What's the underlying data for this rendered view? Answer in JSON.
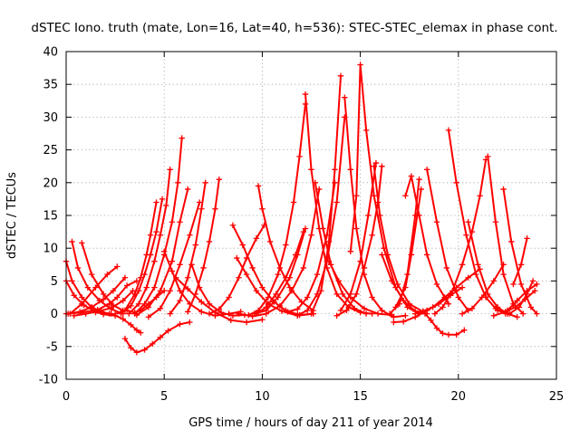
{
  "chart_data": {
    "type": "scatter",
    "title": "dSTEC Iono. truth (mate, Lon=16, Lat=40, h=536): STEC-STEC_elemax in phase cont.",
    "xlabel": "GPS time / hours of day 211 of year 2014",
    "ylabel": "dSTEC  / TECUs",
    "xlim": [
      0,
      25
    ],
    "ylim": [
      -10,
      40
    ],
    "x_ticks": [
      "0",
      "5",
      "10",
      "15",
      "20",
      "25"
    ],
    "y_ticks": [
      "-10",
      "-5",
      "0",
      "5",
      "10",
      "15",
      "20",
      "25",
      "30",
      "35",
      "40"
    ],
    "grid": true,
    "legend": "none",
    "marker": "plus",
    "series_color": "#ff0000",
    "series": [
      {
        "x": [
          0,
          0.3,
          0.8,
          1.3,
          1.8,
          2.2
        ],
        "y": [
          8,
          5,
          2.5,
          1,
          0.3,
          0
        ]
      },
      {
        "x": [
          0,
          0.4,
          0.9,
          1.4,
          1.9,
          2.5
        ],
        "y": [
          5,
          2.8,
          1.3,
          0.5,
          -0.1,
          -0.3
        ]
      },
      {
        "x": [
          0.3,
          0.6,
          1.1,
          1.7,
          2.3,
          2.9
        ],
        "y": [
          11,
          7,
          4,
          2,
          0.7,
          0
        ]
      },
      {
        "x": [
          0.8,
          1.3,
          1.9,
          2.4,
          2.9
        ],
        "y": [
          10.8,
          6,
          3,
          1.3,
          0.5
        ]
      },
      {
        "x": [
          0,
          0.8,
          1.6,
          2.2,
          2.6,
          3.1,
          3.6
        ],
        "y": [
          0,
          0.2,
          0.6,
          1.5,
          2.5,
          4.3,
          5
        ]
      },
      {
        "x": [
          0.4,
          1,
          1.7,
          2.3,
          2.9,
          3.4
        ],
        "y": [
          -0.3,
          0,
          0.4,
          0.9,
          2,
          3.5
        ]
      },
      {
        "x": [
          0.2,
          0.8,
          1.5,
          2.1,
          2.6
        ],
        "y": [
          0,
          1.5,
          4,
          6,
          7.2
        ]
      },
      {
        "x": [
          0.1,
          0.7,
          1.3,
          1.9,
          2.4,
          3
        ],
        "y": [
          0,
          0.3,
          1,
          2.2,
          3.5,
          5.5
        ]
      },
      {
        "x": [
          1.5,
          2.3,
          2.9,
          3.3,
          3.6,
          3.8
        ],
        "y": [
          0.2,
          0,
          -0.8,
          -1.7,
          -2.5,
          -2.9
        ]
      },
      {
        "x": [
          3.1,
          3.5,
          3.8,
          4.2,
          4.6,
          5
        ],
        "y": [
          0.5,
          0.2,
          0.5,
          1.5,
          2.5,
          3.5
        ]
      },
      {
        "x": [
          3,
          3.3,
          3.6,
          4,
          4.4,
          4.8,
          5.2,
          5.8,
          6.3
        ],
        "y": [
          -3.8,
          -5.2,
          -5.9,
          -5.5,
          -4.6,
          -3.6,
          -2.6,
          -1.6,
          -1.3
        ]
      },
      {
        "x": [
          2.5,
          3,
          3.5,
          3.8,
          4.1,
          4.3,
          4.6
        ],
        "y": [
          0,
          0.5,
          3,
          5.5,
          9,
          12,
          17
        ]
      },
      {
        "x": [
          2.8,
          3.3,
          3.7,
          4,
          4.3,
          4.6,
          4.9
        ],
        "y": [
          0,
          1.2,
          3.5,
          6,
          9,
          12.5,
          17.5
        ]
      },
      {
        "x": [
          3.2,
          3.7,
          4.1,
          4.5,
          4.8,
          5.1,
          5.3
        ],
        "y": [
          0,
          1.5,
          4,
          8,
          12,
          16.5,
          22
        ]
      },
      {
        "x": [
          3.5,
          4,
          4.5,
          5,
          5.4,
          5.7,
          5.9
        ],
        "y": [
          0,
          1.5,
          4,
          9,
          14,
          20,
          26.8
        ]
      },
      {
        "x": [
          3.6,
          4.2,
          4.8,
          5.4,
          5.8,
          6.2
        ],
        "y": [
          -0.2,
          1,
          3.5,
          8,
          14,
          19
        ]
      },
      {
        "x": [
          4.2,
          4.8,
          5.3,
          5.8,
          6.3,
          6.8
        ],
        "y": [
          -0.5,
          0.8,
          3.5,
          7.5,
          12,
          17
        ]
      },
      {
        "x": [
          5,
          5.4,
          5.8,
          6.3,
          6.9,
          7.6,
          8.3,
          8.9
        ],
        "y": [
          9.5,
          6.5,
          3.5,
          1.5,
          0.3,
          -0.3,
          0,
          0.3
        ]
      },
      {
        "x": [
          5.3,
          5.8,
          6.2,
          6.6,
          6.9,
          7.1
        ],
        "y": [
          0,
          2,
          5.5,
          10.5,
          16,
          20
        ]
      },
      {
        "x": [
          6.2,
          6.6,
          7,
          7.3,
          7.6,
          7.8
        ],
        "y": [
          0.3,
          3,
          7,
          11,
          16,
          20.5
        ]
      },
      {
        "x": [
          5.6,
          6.2,
          6.9,
          7.6,
          8.4,
          9.2,
          10
        ],
        "y": [
          5.5,
          3.8,
          1.8,
          0.2,
          -1,
          -1.3,
          -0.9
        ]
      },
      {
        "x": [
          6.4,
          6.8,
          7.3,
          7.9,
          8.5,
          9.1
        ],
        "y": [
          7.5,
          4,
          1.5,
          0.2,
          -0.3,
          -0.2
        ]
      },
      {
        "x": [
          7.3,
          7.8,
          8.3,
          8.8,
          9.2,
          9.7,
          10.1
        ],
        "y": [
          0,
          0.7,
          2.5,
          5.5,
          8.5,
          11.5,
          13.5
        ]
      },
      {
        "x": [
          8.5,
          9,
          9.5,
          10,
          10.6,
          11.2,
          11.9,
          12.6
        ],
        "y": [
          13.5,
          10.5,
          7,
          4,
          1.8,
          0.5,
          -0.2,
          0
        ]
      },
      {
        "x": [
          8.7,
          9.2,
          9.7,
          10.3,
          11,
          11.8,
          12.6
        ],
        "y": [
          8.5,
          6,
          3.5,
          1.5,
          0.4,
          -0.3,
          0
        ]
      },
      {
        "x": [
          8.8,
          9.5,
          10.2,
          10.9,
          11.5,
          12.1,
          12.5,
          12.9
        ],
        "y": [
          0,
          -0.4,
          0,
          1.2,
          3.5,
          7,
          12,
          19
        ]
      },
      {
        "x": [
          9.7,
          10.2,
          10.7,
          11.2,
          11.7,
          12.1
        ],
        "y": [
          0,
          1,
          3,
          5.5,
          9,
          12.5
        ]
      },
      {
        "x": [
          9.3,
          9.8,
          10.3,
          10.8,
          11.2,
          11.6,
          11.9,
          12.2
        ],
        "y": [
          -0.2,
          0.5,
          2.5,
          6,
          10.5,
          17,
          24,
          32
        ]
      },
      {
        "x": [
          9.6,
          10.2,
          10.8,
          11.4,
          11.8,
          12.2
        ],
        "y": [
          0,
          0.5,
          2.5,
          5.5,
          9,
          13
        ]
      },
      {
        "x": [
          9.8,
          10,
          10.4,
          10.9,
          11.4,
          12,
          12.6
        ],
        "y": [
          19.5,
          16,
          11,
          7,
          4,
          1.8,
          0.5
        ]
      },
      {
        "x": [
          11.3,
          11.8,
          12.3,
          12.8,
          13.3,
          13.7
        ],
        "y": [
          0.3,
          0.7,
          2.5,
          6,
          12,
          20
        ]
      },
      {
        "x": [
          11.8,
          12.3,
          12.8,
          13.3,
          13.8,
          14.2
        ],
        "y": [
          -0.2,
          0.5,
          3,
          8,
          17,
          30
        ]
      },
      {
        "x": [
          12.5,
          13,
          13.4,
          13.7,
          14
        ],
        "y": [
          0,
          3.5,
          11,
          22,
          36.3
        ]
      },
      {
        "x": [
          12.2,
          12.5,
          12.9,
          13.3,
          13.8,
          14.4,
          15,
          15.6
        ],
        "y": [
          33.5,
          22,
          13,
          7,
          3,
          1,
          0.2,
          0
        ]
      },
      {
        "x": [
          12.7,
          13.1,
          13.5,
          14.1,
          14.7,
          15.3
        ],
        "y": [
          20,
          13,
          7.5,
          3,
          0.8,
          0
        ]
      },
      {
        "x": [
          14.2,
          14.5,
          14.8,
          15.2,
          15.6,
          16.1,
          16.7,
          17.3
        ],
        "y": [
          33,
          22,
          13,
          6,
          2.5,
          0.5,
          -0.5,
          -0.3
        ]
      },
      {
        "x": [
          13.4,
          13.9,
          14.5,
          15.2,
          15.9,
          16.6
        ],
        "y": [
          8,
          5,
          2.5,
          0.8,
          0,
          -0.2
        ]
      },
      {
        "x": [
          13.8,
          14.3,
          14.8,
          15.2,
          15.6,
          15.9,
          16.1
        ],
        "y": [
          -0.3,
          0.5,
          3,
          7,
          12,
          17,
          22.5
        ]
      },
      {
        "x": [
          14,
          14.5,
          15,
          15.4,
          15.8
        ],
        "y": [
          0.5,
          3,
          8,
          15,
          23
        ]
      },
      {
        "x": [
          14.5,
          14.8,
          15,
          15.3,
          15.7,
          16.2,
          16.8,
          17.4,
          18
        ],
        "y": [
          9.5,
          18,
          38,
          28,
          18,
          10,
          4,
          1,
          0
        ]
      },
      {
        "x": [
          15.7,
          16,
          16.4,
          16.9,
          17.5,
          18.2
        ],
        "y": [
          22.5,
          15,
          9,
          4.5,
          1.5,
          0.3
        ]
      },
      {
        "x": [
          16.1,
          16.6,
          17.2,
          17.8,
          18.4
        ],
        "y": [
          9,
          5,
          2,
          0.4,
          0
        ]
      },
      {
        "x": [
          16.5,
          17,
          17.4,
          17.8,
          18
        ],
        "y": [
          0,
          1.5,
          6,
          15,
          20.5
        ]
      },
      {
        "x": [
          16.8,
          17.3,
          17.6,
          17.9,
          18.1
        ],
        "y": [
          1,
          4,
          9,
          15,
          19
        ]
      },
      {
        "x": [
          16.7,
          17.2,
          17.8,
          18.4,
          19,
          19.6,
          20.2
        ],
        "y": [
          -1.3,
          -1.2,
          -0.5,
          0.5,
          1.5,
          2.8,
          4
        ]
      },
      {
        "x": [
          17.8,
          18.2,
          18.7,
          19.3,
          19.9,
          20.5,
          21.1
        ],
        "y": [
          0,
          0.4,
          1,
          2.5,
          4,
          5.5,
          6.8
        ]
      },
      {
        "x": [
          17.3,
          17.6,
          18,
          18.4,
          18.9,
          19.5
        ],
        "y": [
          18,
          21,
          15,
          9,
          4.5,
          1.5
        ]
      },
      {
        "x": [
          18.4,
          18.9,
          19.4,
          20,
          20.5
        ],
        "y": [
          22,
          14,
          7,
          2.5,
          0.5
        ]
      },
      {
        "x": [
          18.3,
          18.6,
          18.9,
          19.2,
          19.5,
          19.9,
          20.3
        ],
        "y": [
          0,
          -1,
          -2.2,
          -3,
          -3.2,
          -3.2,
          -2.5
        ]
      },
      {
        "x": [
          18.8,
          19.2,
          19.7,
          20.2,
          20.7,
          21.1,
          21.4
        ],
        "y": [
          0,
          1,
          3.5,
          7.5,
          12.5,
          18,
          23.5
        ]
      },
      {
        "x": [
          19.5,
          19.9,
          20.4,
          20.9,
          21.4,
          21.9,
          22.4
        ],
        "y": [
          28,
          20,
          12,
          6,
          2.5,
          0.8,
          0
        ]
      },
      {
        "x": [
          20.5,
          21,
          21.5,
          22,
          22.5,
          23
        ],
        "y": [
          14,
          7.5,
          3,
          1,
          0,
          -0.5
        ]
      },
      {
        "x": [
          20.2,
          20.7,
          21.2,
          21.8,
          22.3
        ],
        "y": [
          0,
          0.8,
          2.5,
          5,
          7.5
        ]
      },
      {
        "x": [
          21.5,
          21.9,
          22.3,
          22.8,
          23.3
        ],
        "y": [
          24,
          14,
          6,
          1.5,
          0
        ]
      },
      {
        "x": [
          22.3,
          22.7,
          23.2,
          23.7,
          24
        ],
        "y": [
          19,
          11,
          4.5,
          1,
          0
        ]
      },
      {
        "x": [
          22.8,
          23.2,
          23.5
        ],
        "y": [
          4.5,
          7.5,
          11.5
        ]
      },
      {
        "x": [
          22,
          22.6,
          23.1,
          23.5,
          23.8
        ],
        "y": [
          0.5,
          0,
          1,
          3,
          5
        ]
      },
      {
        "x": [
          21.8,
          22.4,
          22.9,
          23.4,
          23.9
        ],
        "y": [
          -0.3,
          0.3,
          1,
          2.2,
          3.5
        ]
      },
      {
        "x": [
          22.5,
          23,
          23.5,
          24
        ],
        "y": [
          0.5,
          2,
          3.5,
          4.5
        ]
      }
    ]
  }
}
